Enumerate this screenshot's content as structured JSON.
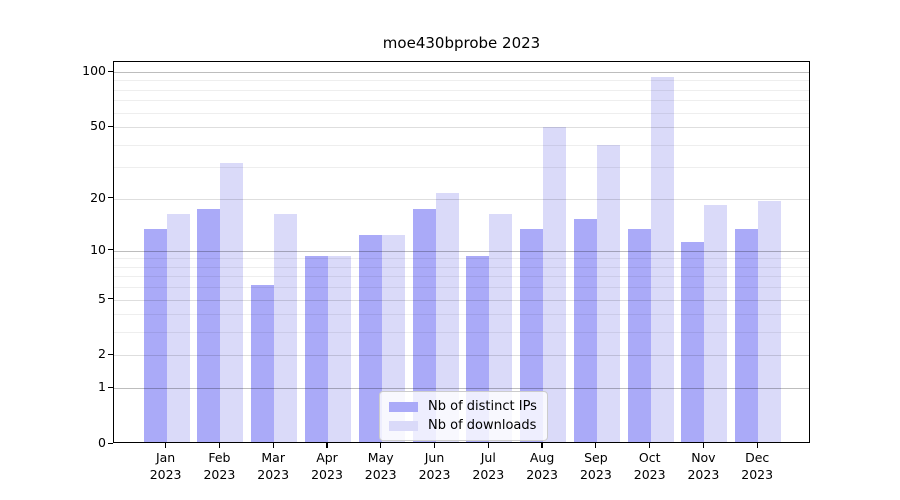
{
  "chart_data": {
    "type": "bar",
    "title": "moe430bprobe 2023",
    "categories": [
      "Jan",
      "Feb",
      "Mar",
      "Apr",
      "May",
      "Jun",
      "Jul",
      "Aug",
      "Sep",
      "Oct",
      "Nov",
      "Dec"
    ],
    "year": "2023",
    "series": [
      {
        "name": "Nb of distinct IPs",
        "color": "#aaaaf8",
        "values": [
          13,
          17,
          6,
          9,
          12,
          17,
          9,
          13,
          15,
          13,
          11,
          13
        ]
      },
      {
        "name": "Nb of downloads",
        "color": "#dadaf9",
        "values": [
          16,
          31,
          16,
          9,
          12,
          21,
          16,
          49,
          39,
          92,
          18,
          19
        ]
      }
    ],
    "y_axis": {
      "scale": "log10(value+1)",
      "ticks": [
        100,
        50,
        20,
        10,
        5,
        2,
        1,
        0
      ],
      "major_gridlines": [
        1,
        10,
        100
      ],
      "mid_gridlines": [
        2,
        5,
        20,
        50
      ],
      "minor_gridlines": [
        3,
        4,
        6,
        7,
        8,
        9,
        30,
        40,
        60,
        70,
        80,
        90
      ],
      "ylim": [
        0,
        113
      ]
    },
    "xlabel": "",
    "ylabel": "",
    "grid": true,
    "legend_position": "lower center"
  }
}
